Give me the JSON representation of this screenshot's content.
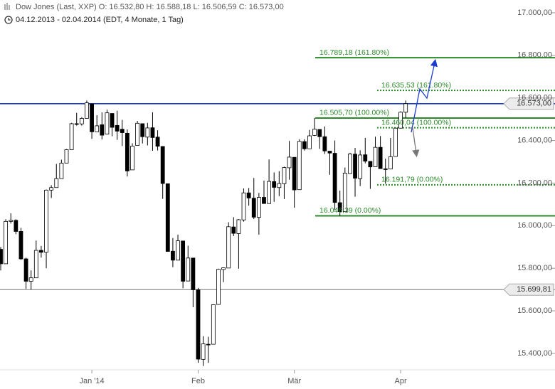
{
  "chart_data": {
    "type": "candlestick",
    "title": "Dow Jones (Last, XXP)  O: 16.532,80  H: 16.588,18  L: 16.506,59  C: 16.573,00",
    "subtitle": "04.12.2013 - 02.04.2014 (EDT, 4 Monate, 1 Tag)",
    "categories": [
      null,
      null,
      null,
      null,
      null,
      null,
      null,
      null,
      null,
      null,
      null,
      null,
      null,
      null,
      null,
      null,
      null,
      null,
      "Jan '14",
      null,
      null,
      null,
      null,
      null,
      null,
      null,
      null,
      null,
      null,
      null,
      null,
      null,
      null,
      null,
      null,
      null,
      null,
      null,
      null,
      "Feb",
      null,
      null,
      null,
      null,
      null,
      null,
      null,
      null,
      null,
      null,
      null,
      null,
      null,
      null,
      null,
      null,
      null,
      null,
      "Mär",
      null,
      null,
      null,
      null,
      null,
      null,
      null,
      null,
      null,
      null,
      null,
      null,
      null,
      null,
      null,
      null,
      null,
      null,
      null,
      null,
      "Apr",
      null
    ],
    "open": [
      15889,
      15821,
      16020,
      16025,
      15973,
      15844,
      15739,
      15755,
      15884,
      15875,
      16167,
      16179,
      16221,
      16294,
      16357,
      16479,
      16478,
      16504,
      16572,
      16441,
      16474,
      16430,
      16527,
      16471,
      16453,
      16434,
      16262,
      16377,
      16479,
      16416,
      16460,
      16416,
      16372,
      16197,
      15880,
      15838,
      15928,
      15740,
      15848,
      15699,
      15372,
      15443,
      15443,
      15630,
      15794,
      15801,
      15994,
      15963,
      16027,
      16154,
      16129,
      16039,
      16133,
      16104,
      16207,
      16179,
      16197,
      16272,
      16321,
      16169,
      16395,
      16361,
      16424,
      16452,
      16418,
      16350,
      16340,
      16108,
      16066,
      16245,
      16336,
      16221,
      16333,
      16302,
      16277,
      16368,
      16267,
      16266,
      16325,
      16458,
      16532.8
    ],
    "high": [
      15900,
      16030,
      16058,
      16030,
      15990,
      15850,
      15790,
      15930,
      15905,
      16170,
      16190,
      16290,
      16310,
      16360,
      16483,
      16530,
      16510,
      16588,
      16573,
      16519,
      16532,
      16545,
      16528,
      16540,
      16497,
      16452,
      16387,
      16492,
      16479,
      16483,
      16533,
      16448,
      16372,
      16197,
      15942,
      15958,
      15928,
      15906,
      15848,
      15708,
      15481,
      15478,
      15631,
      15798,
      15803,
      16016,
      16040,
      16031,
      16175,
      16177,
      16224,
      16154,
      16212,
      16311,
      16250,
      16256,
      16277,
      16398,
      16321,
      16406,
      16406,
      16450,
      16506,
      16452,
      16466,
      16350,
      16400,
      16165,
      16273,
      16342,
      16365,
      16354,
      16412,
      16302,
      16418,
      16421,
      16315,
      16412,
      16461,
      16537,
      16588.18
    ],
    "low": [
      15790,
      15821,
      16010,
      15960,
      15840,
      15703,
      15700,
      15755,
      15850,
      15800,
      16130,
      16179,
      16221,
      16294,
      16357,
      16470,
      16470,
      16504,
      16408,
      16441,
      16405,
      16430,
      16420,
      16403,
      16374,
      16231,
      16262,
      16377,
      16386,
      16377,
      16352,
      16353,
      16126,
      15879,
      15805,
      15838,
      15706,
      15740,
      15617,
      15356,
      15341,
      15356,
      15443,
      15630,
      15735,
      15801,
      15951,
      15798,
      16019,
      16094,
      16031,
      15958,
      16103,
      16104,
      16112,
      16139,
      16125,
      16216,
      16084,
      16169,
      16353,
      16361,
      16421,
      16361,
      16337,
      16239,
      16075,
      16046,
      16066,
      16245,
      16136,
      16186,
      16293,
      16173,
      16277,
      16268,
      16197,
      16266,
      16325,
      16458,
      16506.59
    ],
    "close": [
      15821,
      16020,
      16025,
      15973,
      15844,
      15739,
      15755,
      15884,
      15875,
      16167,
      16179,
      16221,
      16294,
      16357,
      16479,
      16478,
      16504,
      16577,
      16441,
      16469,
      16425,
      16530,
      16462,
      16444,
      16437,
      16257,
      16374,
      16481,
      16418,
      16459,
      16414,
      16373,
      16198,
      15879,
      15838,
      15929,
      15739,
      15848,
      15699,
      15373,
      15445,
      15440,
      15629,
      15795,
      15802,
      15995,
      15964,
      16028,
      16154,
      16130,
      16040,
      16133,
      16104,
      16208,
      16180,
      16198,
      16273,
      16322,
      16168,
      16396,
      16361,
      16422,
      16453,
      16418,
      16351,
      16341,
      16109,
      16066,
      16247,
      16337,
      16223,
      16332,
      16303,
      16276,
      16368,
      16268,
      16265,
      16324,
      16458,
      16533,
      16573
    ],
    "up_color": "#ffffff",
    "down_color": "#000000",
    "ylim": [
      15323,
      17060
    ],
    "yticks": [
      {
        "value": 15400,
        "label": "15.400,00"
      },
      {
        "value": 15600,
        "label": "15.600,00"
      },
      {
        "value": 15800,
        "label": "15.800,00"
      },
      {
        "value": 16000,
        "label": "16.000,00"
      },
      {
        "value": 16200,
        "label": "16.200,00"
      },
      {
        "value": 16400,
        "label": "16.400,00"
      },
      {
        "value": 16600,
        "label": "16.600,00"
      },
      {
        "value": 16800,
        "label": "16.800,00"
      },
      {
        "value": 17000,
        "label": "17.000,00"
      }
    ],
    "price_lines": [
      {
        "value": 16573,
        "label": "16.573,00",
        "color": "#1c3ccf"
      },
      {
        "value": 15699.81,
        "label": "15.699,81",
        "color": "#777777"
      }
    ],
    "fib_levels": [
      {
        "value": 16789.18,
        "label": "16.789,18 (161.80%)",
        "style": "solid"
      },
      {
        "value": 16505.7,
        "label": "16.505,70 (100.00%)",
        "style": "solid"
      },
      {
        "value": 16046.39,
        "label": "16.046,39 (0.00%)",
        "style": "solid"
      },
      {
        "value": 16635.53,
        "label": "16.635,53 (161.80%)",
        "style": "dotted"
      },
      {
        "value": 16460.04,
        "label": "16.460,04 (100.00%)",
        "style": "dotted"
      },
      {
        "value": 16191.79,
        "label": "16.191,79 (0.00%)",
        "style": "dotted"
      }
    ],
    "fib_color": "#2a8a2a"
  }
}
